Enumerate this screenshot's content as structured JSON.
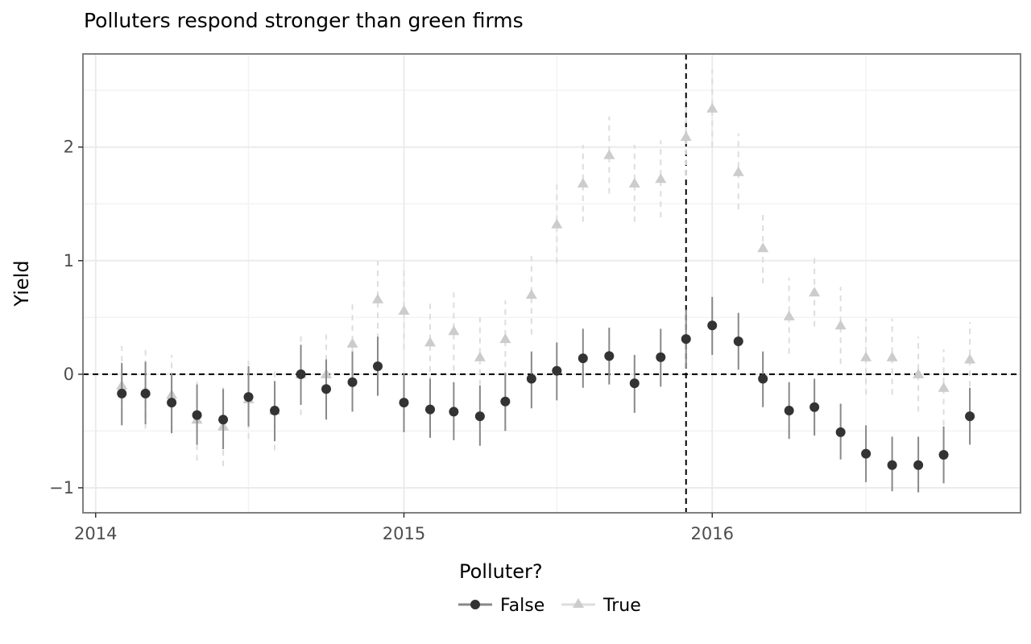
{
  "chart_data": {
    "type": "scatter",
    "title": "Polluters respond stronger than green firms",
    "xlabel": "",
    "ylabel": "Yield",
    "x_ticks": [
      "2014",
      "2015",
      "2016"
    ],
    "y_ticks": [
      "−1",
      "0",
      "1",
      "2"
    ],
    "y_tick_values": [
      -1,
      0,
      1,
      2
    ],
    "xlim": [
      "2013-12-17",
      "2016-12-31"
    ],
    "ylim": [
      -1.22,
      2.82
    ],
    "grid": true,
    "reference_lines": {
      "x": "2015-12-01",
      "y": 0
    },
    "legend": {
      "title": "Polluter?",
      "position": "bottom",
      "entries": [
        {
          "label": "False",
          "marker": "circle",
          "color": "#333333",
          "line": "solid"
        },
        {
          "label": "True",
          "marker": "triangle",
          "color": "#cccccc",
          "line": "dashed"
        }
      ]
    },
    "series": [
      {
        "name": "False",
        "color": "#333333",
        "errorbar_color": "#888888",
        "marker": "circle",
        "points": [
          {
            "x": "2014-02-01",
            "y": -0.17,
            "lo": -0.45,
            "hi": 0.1
          },
          {
            "x": "2014-03-01",
            "y": -0.17,
            "lo": -0.44,
            "hi": 0.11
          },
          {
            "x": "2014-04-01",
            "y": -0.25,
            "lo": -0.52,
            "hi": 0.01
          },
          {
            "x": "2014-05-01",
            "y": -0.36,
            "lo": -0.62,
            "hi": -0.09
          },
          {
            "x": "2014-06-01",
            "y": -0.4,
            "lo": -0.66,
            "hi": -0.13
          },
          {
            "x": "2014-07-01",
            "y": -0.2,
            "lo": -0.46,
            "hi": 0.07
          },
          {
            "x": "2014-08-01",
            "y": -0.32,
            "lo": -0.59,
            "hi": -0.06
          },
          {
            "x": "2014-09-01",
            "y": 0.0,
            "lo": -0.27,
            "hi": 0.26
          },
          {
            "x": "2014-10-01",
            "y": -0.13,
            "lo": -0.4,
            "hi": 0.13
          },
          {
            "x": "2014-11-01",
            "y": -0.07,
            "lo": -0.33,
            "hi": 0.2
          },
          {
            "x": "2014-12-01",
            "y": 0.07,
            "lo": -0.19,
            "hi": 0.33
          },
          {
            "x": "2015-01-01",
            "y": -0.25,
            "lo": -0.51,
            "hi": 0.01
          },
          {
            "x": "2015-02-01",
            "y": -0.31,
            "lo": -0.56,
            "hi": -0.04
          },
          {
            "x": "2015-03-01",
            "y": -0.33,
            "lo": -0.58,
            "hi": -0.07
          },
          {
            "x": "2015-04-01",
            "y": -0.37,
            "lo": -0.63,
            "hi": -0.1
          },
          {
            "x": "2015-05-01",
            "y": -0.24,
            "lo": -0.5,
            "hi": 0.01
          },
          {
            "x": "2015-06-01",
            "y": -0.04,
            "lo": -0.3,
            "hi": 0.2
          },
          {
            "x": "2015-07-01",
            "y": 0.03,
            "lo": -0.23,
            "hi": 0.28
          },
          {
            "x": "2015-08-01",
            "y": 0.14,
            "lo": -0.12,
            "hi": 0.4
          },
          {
            "x": "2015-09-01",
            "y": 0.16,
            "lo": -0.09,
            "hi": 0.41
          },
          {
            "x": "2015-10-01",
            "y": -0.08,
            "lo": -0.34,
            "hi": 0.17
          },
          {
            "x": "2015-11-01",
            "y": 0.15,
            "lo": -0.11,
            "hi": 0.4
          },
          {
            "x": "2015-12-01",
            "y": 0.31,
            "lo": 0.05,
            "hi": 0.57
          },
          {
            "x": "2016-01-01",
            "y": 0.43,
            "lo": 0.17,
            "hi": 0.68
          },
          {
            "x": "2016-02-01",
            "y": 0.29,
            "lo": 0.04,
            "hi": 0.54
          },
          {
            "x": "2016-03-01",
            "y": -0.04,
            "lo": -0.29,
            "hi": 0.2
          },
          {
            "x": "2016-04-01",
            "y": -0.32,
            "lo": -0.57,
            "hi": -0.07
          },
          {
            "x": "2016-05-01",
            "y": -0.29,
            "lo": -0.54,
            "hi": -0.04
          },
          {
            "x": "2016-06-01",
            "y": -0.51,
            "lo": -0.75,
            "hi": -0.26
          },
          {
            "x": "2016-07-01",
            "y": -0.7,
            "lo": -0.95,
            "hi": -0.45
          },
          {
            "x": "2016-08-01",
            "y": -0.8,
            "lo": -1.03,
            "hi": -0.55
          },
          {
            "x": "2016-09-01",
            "y": -0.8,
            "lo": -1.04,
            "hi": -0.55
          },
          {
            "x": "2016-10-01",
            "y": -0.71,
            "lo": -0.96,
            "hi": -0.46
          },
          {
            "x": "2016-11-01",
            "y": -0.37,
            "lo": -0.62,
            "hi": -0.12
          }
        ]
      },
      {
        "name": "True",
        "color": "#cccccc",
        "errorbar_color": "#dddddd",
        "marker": "triangle",
        "points": [
          {
            "x": "2014-02-01",
            "y": -0.1,
            "lo": -0.44,
            "hi": 0.25
          },
          {
            "x": "2014-03-01",
            "y": -0.15,
            "lo": -0.48,
            "hi": 0.23
          },
          {
            "x": "2014-04-01",
            "y": -0.18,
            "lo": -0.5,
            "hi": 0.17
          },
          {
            "x": "2014-05-01",
            "y": -0.4,
            "lo": -0.76,
            "hi": -0.05
          },
          {
            "x": "2014-06-01",
            "y": -0.46,
            "lo": -0.81,
            "hi": -0.11
          },
          {
            "x": "2014-07-01",
            "y": -0.22,
            "lo": -0.57,
            "hi": 0.12
          },
          {
            "x": "2014-08-01",
            "y": -0.32,
            "lo": -0.67,
            "hi": 0.03
          },
          {
            "x": "2014-09-01",
            "y": 0.0,
            "lo": -0.36,
            "hi": 0.35
          },
          {
            "x": "2014-10-01",
            "y": 0.0,
            "lo": -0.34,
            "hi": 0.35
          },
          {
            "x": "2014-11-01",
            "y": 0.27,
            "lo": -0.08,
            "hi": 0.62
          },
          {
            "x": "2014-12-01",
            "y": 0.66,
            "lo": 0.31,
            "hi": 1.0
          },
          {
            "x": "2015-01-01",
            "y": 0.56,
            "lo": 0.22,
            "hi": 0.91
          },
          {
            "x": "2015-02-01",
            "y": 0.28,
            "lo": -0.07,
            "hi": 0.62
          },
          {
            "x": "2015-03-01",
            "y": 0.38,
            "lo": 0.03,
            "hi": 0.72
          },
          {
            "x": "2015-04-01",
            "y": 0.15,
            "lo": -0.19,
            "hi": 0.5
          },
          {
            "x": "2015-05-01",
            "y": 0.31,
            "lo": -0.03,
            "hi": 0.65
          },
          {
            "x": "2015-06-01",
            "y": 0.7,
            "lo": 0.35,
            "hi": 1.04
          },
          {
            "x": "2015-07-01",
            "y": 1.32,
            "lo": 0.98,
            "hi": 1.67
          },
          {
            "x": "2015-08-01",
            "y": 1.68,
            "lo": 1.34,
            "hi": 2.02
          },
          {
            "x": "2015-09-01",
            "y": 1.93,
            "lo": 1.59,
            "hi": 2.27
          },
          {
            "x": "2015-10-01",
            "y": 1.68,
            "lo": 1.34,
            "hi": 2.02
          },
          {
            "x": "2015-11-01",
            "y": 1.72,
            "lo": 1.38,
            "hi": 2.06
          },
          {
            "x": "2015-12-01",
            "y": 2.09,
            "lo": 1.75,
            "hi": 2.43
          },
          {
            "x": "2016-01-01",
            "y": 2.34,
            "lo": 2.0,
            "hi": 2.68
          },
          {
            "x": "2016-02-01",
            "y": 1.78,
            "lo": 1.45,
            "hi": 2.12
          },
          {
            "x": "2016-03-01",
            "y": 1.11,
            "lo": 0.8,
            "hi": 1.44
          },
          {
            "x": "2016-04-01",
            "y": 0.51,
            "lo": 0.18,
            "hi": 0.85
          },
          {
            "x": "2016-05-01",
            "y": 0.72,
            "lo": 0.42,
            "hi": 1.05
          },
          {
            "x": "2016-06-01",
            "y": 0.43,
            "lo": 0.09,
            "hi": 0.77
          },
          {
            "x": "2016-07-01",
            "y": 0.15,
            "lo": -0.18,
            "hi": 0.49
          },
          {
            "x": "2016-08-01",
            "y": 0.15,
            "lo": -0.18,
            "hi": 0.49
          },
          {
            "x": "2016-09-01",
            "y": 0.0,
            "lo": -0.33,
            "hi": 0.33
          },
          {
            "x": "2016-10-01",
            "y": -0.12,
            "lo": -0.45,
            "hi": 0.22
          },
          {
            "x": "2016-11-01",
            "y": 0.13,
            "lo": -0.2,
            "hi": 0.46
          }
        ]
      }
    ]
  }
}
